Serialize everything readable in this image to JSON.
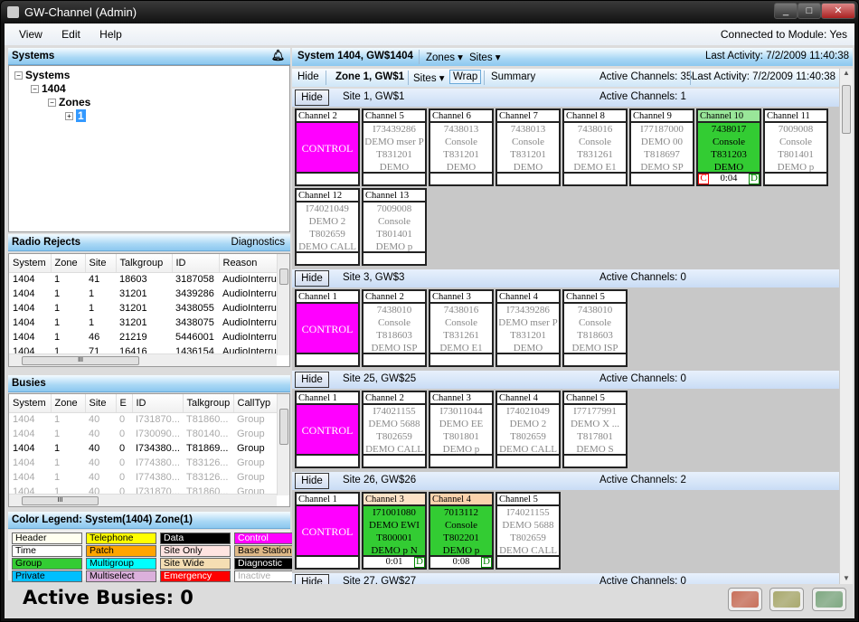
{
  "window": {
    "title": "GW-Channel (Admin)",
    "controls": [
      "_",
      "□",
      "✕"
    ]
  },
  "menu": {
    "items": [
      "View",
      "Edit",
      "Help"
    ],
    "connection": "Connected to Module: Yes"
  },
  "systems": {
    "title": "Systems",
    "tree": [
      "Systems",
      "1404",
      "Zones",
      "1"
    ]
  },
  "radio_rejects": {
    "title": "Radio Rejects",
    "action": "Diagnostics",
    "columns": [
      "System",
      "Zone",
      "Site",
      "Talkgroup",
      "ID",
      "Reason"
    ],
    "rows": [
      [
        "1404",
        "1",
        "41",
        "18603",
        "3187058",
        "AudioInterrup"
      ],
      [
        "1404",
        "1",
        "1",
        "31201",
        "3439286",
        "AudioInterrup"
      ],
      [
        "1404",
        "1",
        "1",
        "31201",
        "3438055",
        "AudioInterrup"
      ],
      [
        "1404",
        "1",
        "1",
        "31201",
        "3438075",
        "AudioInterrup"
      ],
      [
        "1404",
        "1",
        "46",
        "21219",
        "5446001",
        "AudioInterrup"
      ],
      [
        "1404",
        "1",
        "71",
        "16416",
        "1436154",
        "AudioInterrup"
      ]
    ]
  },
  "busies": {
    "title": "Busies",
    "columns": [
      "System",
      "Zone",
      "Site",
      "E",
      "ID",
      "Talkgroup",
      "CallTyp"
    ],
    "rows": [
      {
        "active": false,
        "cells": [
          "1404",
          "1",
          "40",
          "0",
          "I731870...",
          "T81860...",
          "Group"
        ]
      },
      {
        "active": false,
        "cells": [
          "1404",
          "1",
          "40",
          "0",
          "I730090...",
          "T80140...",
          "Group"
        ]
      },
      {
        "active": true,
        "cells": [
          "1404",
          "1",
          "40",
          "0",
          "I734380...",
          "T81869...",
          "Group"
        ]
      },
      {
        "active": false,
        "cells": [
          "1404",
          "1",
          "40",
          "0",
          "I774380...",
          "T83126...",
          "Group"
        ]
      },
      {
        "active": false,
        "cells": [
          "1404",
          "1",
          "40",
          "0",
          "I774380...",
          "T83126...",
          "Group"
        ]
      },
      {
        "active": false,
        "cells": [
          "1404",
          "1",
          "40",
          "0",
          "I731870...",
          "T81860...",
          "Group"
        ]
      }
    ]
  },
  "legend": {
    "title": "Color Legend: System(1404) Zone(1)",
    "items": [
      {
        "label": "Header",
        "bg": "#fffff0",
        "fg": "#000"
      },
      {
        "label": "Time",
        "bg": "#ffffff",
        "fg": "#000"
      },
      {
        "label": "Group",
        "bg": "#33cc33",
        "fg": "#000"
      },
      {
        "label": "Private",
        "bg": "#00bfff",
        "fg": "#000"
      },
      {
        "label": "Telephone",
        "bg": "#ffff00",
        "fg": "#000"
      },
      {
        "label": "Patch",
        "bg": "#ffa500",
        "fg": "#000"
      },
      {
        "label": "Multigroup",
        "bg": "#00ffff",
        "fg": "#000"
      },
      {
        "label": "Multiselect",
        "bg": "#dbb0dc",
        "fg": "#000"
      },
      {
        "label": "Data",
        "bg": "#000000",
        "fg": "#fff"
      },
      {
        "label": "Site Only",
        "bg": "#ffe4e1",
        "fg": "#000"
      },
      {
        "label": "Site Wide",
        "bg": "#f5deb3",
        "fg": "#000"
      },
      {
        "label": "Emergency",
        "bg": "#ff0000",
        "fg": "#fff"
      },
      {
        "label": "Control",
        "bg": "#ff00ff",
        "fg": "#fff"
      },
      {
        "label": "Base Station",
        "bg": "#deb887",
        "fg": "#000"
      },
      {
        "label": "Diagnostic",
        "bg": "#000000",
        "fg": "#fff"
      },
      {
        "label": "Inactive",
        "bg": "#ffffff",
        "fg": "#aaa"
      }
    ]
  },
  "system_bar": {
    "title": "System 1404, GW$1404",
    "zones": "Zones",
    "sites": "Sites",
    "last_activity": "Last Activity: 7/2/2009 11:40:38"
  },
  "zone_bar": {
    "hide": "Hide",
    "title": "Zone 1, GW$1",
    "sites": "Sites",
    "wrap": "Wrap",
    "summary": "Summary",
    "active_channels": "Active Channels: 35",
    "last_activity": "Last Activity: 7/2/2009 11:40:38"
  },
  "sites": [
    {
      "name": "Site 1, GW$1",
      "hide": "Hide",
      "active": "Active Channels: 1",
      "channels": [
        {
          "name": "Channel 2",
          "state": "control",
          "lines": [
            "CONTROL"
          ]
        },
        {
          "name": "Channel 5",
          "state": "idle",
          "lines": [
            "I73439286",
            "DEMO mser P",
            "T831201",
            "DEMO"
          ]
        },
        {
          "name": "Channel 6",
          "state": "idle",
          "lines": [
            "7438013",
            "Console",
            "T831201",
            "DEMO"
          ]
        },
        {
          "name": "Channel 7",
          "state": "idle",
          "lines": [
            "7438013",
            "Console",
            "T831201",
            "DEMO"
          ]
        },
        {
          "name": "Channel 8",
          "state": "idle",
          "lines": [
            "7438016",
            "Console",
            "T831261",
            "DEMO E1"
          ]
        },
        {
          "name": "Channel 9",
          "state": "idle",
          "lines": [
            "I77187000",
            "DEMO 00",
            "T818697",
            "DEMO SP"
          ]
        },
        {
          "name": "Channel 10",
          "state": "active",
          "header_color": "#99e699",
          "lines": [
            "7438017",
            "Console",
            "T831203",
            "DEMO"
          ],
          "time": "0:04",
          "flags": [
            "C",
            "D"
          ]
        },
        {
          "name": "Channel 11",
          "state": "idle",
          "lines": [
            "7009008",
            "Console",
            "T801401",
            "DEMO p"
          ]
        },
        {
          "name": "Channel 12",
          "state": "idle",
          "lines": [
            "I74021049",
            "DEMO 2",
            "T802659",
            "DEMO CALL"
          ]
        },
        {
          "name": "Channel 13",
          "state": "idle",
          "lines": [
            "7009008",
            "Console",
            "T801401",
            "DEMO p"
          ]
        }
      ]
    },
    {
      "name": "Site 3, GW$3",
      "hide": "Hide",
      "active": "Active Channels: 0",
      "channels": [
        {
          "name": "Channel 1",
          "state": "control",
          "lines": [
            "CONTROL"
          ]
        },
        {
          "name": "Channel 2",
          "state": "idle",
          "lines": [
            "7438010",
            "Console",
            "T818603",
            "DEMO ISP"
          ]
        },
        {
          "name": "Channel 3",
          "state": "idle",
          "lines": [
            "7438016",
            "Console",
            "T831261",
            "DEMO E1"
          ]
        },
        {
          "name": "Channel 4",
          "state": "idle",
          "lines": [
            "I73439286",
            "DEMO mser P",
            "T831201",
            "DEMO"
          ]
        },
        {
          "name": "Channel 5",
          "state": "idle",
          "lines": [
            "7438010",
            "Console",
            "T818603",
            "DEMO ISP"
          ]
        }
      ]
    },
    {
      "name": "Site 25, GW$25",
      "hide": "Hide",
      "active": "Active Channels: 0",
      "channels": [
        {
          "name": "Channel 1",
          "state": "control",
          "lines": [
            "CONTROL"
          ]
        },
        {
          "name": "Channel 2",
          "state": "idle",
          "lines": [
            "I74021155",
            "DEMO 5688",
            "T802659",
            "DEMO CALL"
          ]
        },
        {
          "name": "Channel 3",
          "state": "idle",
          "lines": [
            "I73011044",
            "DEMO EE",
            "T801801",
            "DEMO p"
          ]
        },
        {
          "name": "Channel 4",
          "state": "idle",
          "lines": [
            "I74021049",
            "DEMO 2",
            "T802659",
            "DEMO CALL"
          ]
        },
        {
          "name": "Channel 5",
          "state": "idle",
          "lines": [
            "I77177991",
            "DEMO X ...",
            "T817801",
            "DEMO S"
          ]
        }
      ]
    },
    {
      "name": "Site 26, GW$26",
      "hide": "Hide",
      "active": "Active Channels: 2",
      "channels": [
        {
          "name": "Channel 1",
          "state": "control",
          "lines": [
            "CONTROL"
          ]
        },
        {
          "name": "Channel 3",
          "state": "active",
          "header_color": "#fde3c8",
          "lines": [
            "I71001080",
            "DEMO EWI",
            "T800001",
            "DEMO p N"
          ],
          "time": "0:01",
          "flags": [
            "D"
          ]
        },
        {
          "name": "Channel 4",
          "state": "active",
          "header_color": "#fbd3ad",
          "lines": [
            "7013112",
            "Console",
            "T802201",
            "DEMO p"
          ],
          "time": "0:08",
          "flags": [
            "D"
          ]
        },
        {
          "name": "Channel 5",
          "state": "idle",
          "lines": [
            "I74021155",
            "DEMO 5688",
            "T802659",
            "DEMO CALL"
          ]
        }
      ]
    },
    {
      "name": "Site 27, GW$27",
      "hide": "Hide",
      "active": "Active Channels: 0",
      "channels": []
    }
  ],
  "status": {
    "active_busies": "Active Busies:  0",
    "buttons": [
      {
        "name": "red",
        "color": "#c8705a"
      },
      {
        "name": "yellow",
        "color": "#a9a96e"
      },
      {
        "name": "green",
        "color": "#7fa882"
      }
    ]
  }
}
